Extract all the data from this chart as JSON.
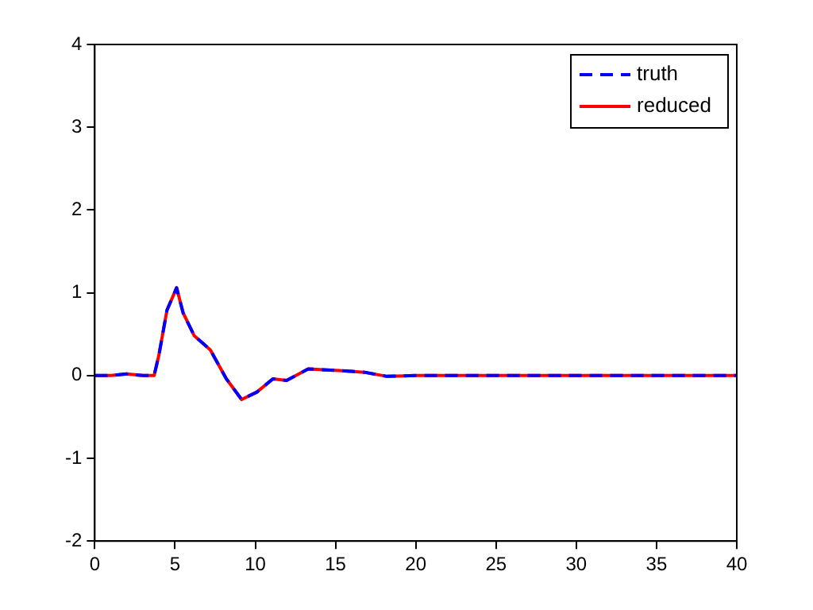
{
  "chart_data": {
    "type": "line",
    "x": [
      0,
      1,
      2,
      3,
      3.7,
      4,
      4.5,
      5.1,
      5.5,
      6.2,
      7.2,
      8.2,
      9.15,
      10.1,
      11.1,
      11.95,
      13.3,
      15.2,
      16.8,
      18.2,
      20,
      25,
      30,
      35,
      40
    ],
    "series": [
      {
        "name": "truth",
        "color": "#0000ff",
        "line_style": "dashed",
        "values": [
          0,
          0,
          0.02,
          0,
          0,
          0.25,
          0.79,
          1.06,
          0.76,
          0.48,
          0.31,
          -0.04,
          -0.29,
          -0.2,
          -0.04,
          -0.06,
          0.08,
          0.06,
          0.04,
          -0.01,
          0,
          0,
          0,
          0,
          0
        ]
      },
      {
        "name": "reduced",
        "color": "#ff0000",
        "line_style": "solid",
        "values": [
          0,
          0,
          0.02,
          0,
          0,
          0.25,
          0.79,
          1.06,
          0.76,
          0.48,
          0.31,
          -0.04,
          -0.29,
          -0.2,
          -0.04,
          -0.06,
          0.08,
          0.06,
          0.04,
          -0.01,
          0,
          0,
          0,
          0,
          0
        ]
      }
    ],
    "xlim": [
      0,
      40
    ],
    "xticks": [
      0,
      5,
      10,
      15,
      20,
      25,
      30,
      35,
      40
    ],
    "ylim": [
      -2,
      4
    ],
    "yticks": [
      -2,
      -1,
      0,
      1,
      2,
      3,
      4
    ],
    "grid": false,
    "legend": "top right",
    "marker": "none"
  }
}
